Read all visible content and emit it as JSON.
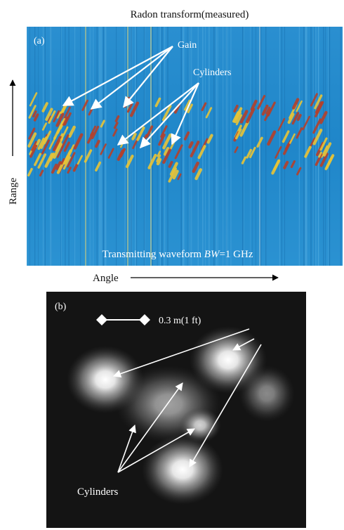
{
  "figure": {
    "panel_a": {
      "title": "Radon transform(measured)",
      "label": "(a)",
      "annotations": {
        "gain": "Gain",
        "cylinders": "Cylinders"
      },
      "caption": {
        "prefix": "Transmitting waveform ",
        "variable": "BW",
        "suffix": "=1 GHz"
      },
      "y_axis_label": "Range",
      "x_axis_label": "Angle"
    },
    "panel_b": {
      "label": "(b)",
      "scale_bar": "0.3 m(1 ft)",
      "annotation": "Cylinders"
    }
  }
}
